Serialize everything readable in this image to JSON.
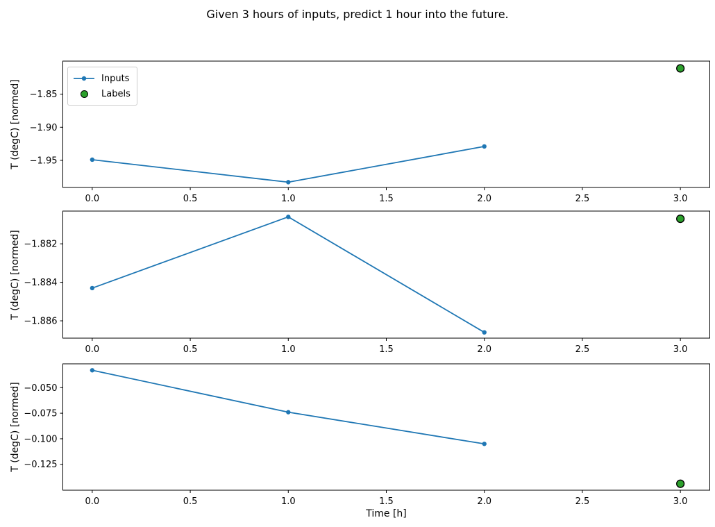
{
  "figure": {
    "background": "#ffffff"
  },
  "chart_data": {
    "type": "line",
    "title": "Given 3 hours of inputs, predict 1 hour into the future.",
    "xlabel": "Time [h]",
    "grid": false,
    "legend_position": "upper-left-first-subplot",
    "legend": {
      "inputs_label": "Inputs",
      "labels_label": "Labels"
    },
    "colors": {
      "inputs_line": "#1f77b4",
      "labels_fill": "#2ca02c",
      "labels_edge": "#000000",
      "axes_edge": "#000000",
      "legend_border": "#cccccc"
    },
    "x_inputs": [
      0.0,
      1.0,
      2.0
    ],
    "label_x": 3.0,
    "xlim": [
      -0.15,
      3.15
    ],
    "xtick_values": [
      0.0,
      0.5,
      1.0,
      1.5,
      2.0,
      2.5,
      3.0
    ],
    "xtick_labels": [
      "0.0",
      "0.5",
      "1.0",
      "1.5",
      "2.0",
      "2.5",
      "3.0"
    ],
    "subplots": [
      {
        "ylabel": "T (degC) [normed]",
        "ylim": [
          -1.991,
          -1.8
        ],
        "ytick_values": [
          -1.85,
          -1.9,
          -1.95
        ],
        "ytick_labels": [
          "−1.85",
          "−1.90",
          "−1.95"
        ],
        "series": [
          {
            "name": "Inputs",
            "x": [
              0.0,
              1.0,
              2.0
            ],
            "y": [
              -1.949,
              -1.983,
              -1.929
            ]
          },
          {
            "name": "Labels",
            "x": [
              3.0
            ],
            "y": [
              -1.811
            ]
          }
        ],
        "show_legend": true
      },
      {
        "ylabel": "T (degC) [normed]",
        "ylim": [
          -1.8869,
          -1.8803
        ],
        "ytick_values": [
          -1.882,
          -1.884,
          -1.886
        ],
        "ytick_labels": [
          "−1.882",
          "−1.884",
          "−1.886"
        ],
        "series": [
          {
            "name": "Inputs",
            "x": [
              0.0,
              1.0,
              2.0
            ],
            "y": [
              -1.8843,
              -1.8806,
              -1.8866
            ]
          },
          {
            "name": "Labels",
            "x": [
              3.0
            ],
            "y": [
              -1.8807
            ]
          }
        ],
        "show_legend": false
      },
      {
        "ylabel": "T (degC) [normed]",
        "ylim": [
          -0.1503,
          -0.0267
        ],
        "ytick_values": [
          -0.05,
          -0.075,
          -0.1,
          -0.125
        ],
        "ytick_labels": [
          "−0.050",
          "−0.075",
          "−0.100",
          "−0.125"
        ],
        "series": [
          {
            "name": "Inputs",
            "x": [
              0.0,
              1.0,
              2.0
            ],
            "y": [
              -0.033,
              -0.074,
              -0.105
            ]
          },
          {
            "name": "Labels",
            "x": [
              3.0
            ],
            "y": [
              -0.144
            ]
          }
        ],
        "show_legend": false
      }
    ]
  }
}
